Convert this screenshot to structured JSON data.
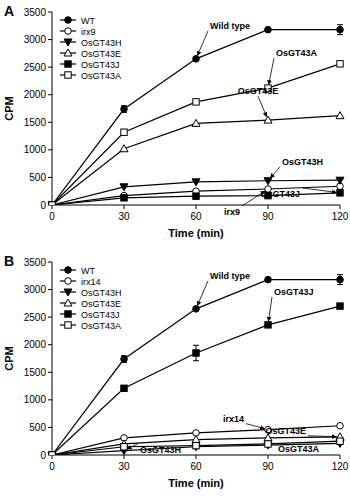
{
  "chart_data": [
    {
      "type": "line",
      "title": "A",
      "x_label": "Time (min)",
      "y_label": "CPM",
      "x": [
        0,
        30,
        60,
        90,
        120
      ],
      "xlim": [
        0,
        120
      ],
      "xticks": [
        0,
        30,
        60,
        90,
        120
      ],
      "ylim": [
        0,
        3500
      ],
      "yticks": [
        0,
        500,
        1000,
        1500,
        2000,
        2500,
        3000,
        3500
      ],
      "legend": "upper left",
      "series": [
        {
          "name": "WT",
          "color": "#000000",
          "marker": "circle",
          "values": [
            0,
            1740,
            2650,
            3180,
            3180
          ],
          "errors": [
            null,
            60,
            null,
            null,
            90
          ]
        },
        {
          "name": "irx9",
          "color": "#000000",
          "marker": "circle-open",
          "values": [
            0,
            170,
            250,
            290,
            340
          ]
        },
        {
          "name": "OsGT43H",
          "color": "#000000",
          "marker": "triangle-down",
          "values": [
            0,
            330,
            420,
            440,
            450
          ]
        },
        {
          "name": "OsGT43E",
          "color": "#000000",
          "marker": "triangle-open",
          "values": [
            0,
            1020,
            1480,
            1540,
            1620
          ]
        },
        {
          "name": "OsGT43J",
          "color": "#000000",
          "marker": "square",
          "values": [
            0,
            130,
            160,
            170,
            220
          ]
        },
        {
          "name": "OsGT43A",
          "color": "#000000",
          "marker": "square-open",
          "values": [
            0,
            1320,
            1870,
            2120,
            2560
          ]
        }
      ],
      "annotations": [
        "Wild type",
        "OsGT43A",
        "OsGT43E",
        "OsGT43H",
        "irx9",
        "OsGT43J"
      ]
    },
    {
      "type": "line",
      "title": "B",
      "x_label": "Time (min)",
      "y_label": "CPM",
      "x": [
        0,
        30,
        60,
        90,
        120
      ],
      "xlim": [
        0,
        120
      ],
      "xticks": [
        0,
        30,
        60,
        90,
        120
      ],
      "ylim": [
        0,
        3500
      ],
      "yticks": [
        0,
        500,
        1000,
        1500,
        2000,
        2500,
        3000,
        3500
      ],
      "legend": "upper left",
      "series": [
        {
          "name": "WT",
          "color": "#000000",
          "marker": "circle",
          "values": [
            0,
            1740,
            2650,
            3180,
            3180
          ],
          "errors": [
            null,
            60,
            null,
            null,
            90
          ]
        },
        {
          "name": "irx14",
          "color": "#000000",
          "marker": "circle-open",
          "values": [
            0,
            310,
            400,
            460,
            530
          ]
        },
        {
          "name": "OsGT43H",
          "color": "#000000",
          "marker": "triangle-down",
          "values": [
            0,
            80,
            150,
            180,
            210
          ]
        },
        {
          "name": "OsGT43E",
          "color": "#000000",
          "marker": "triangle-open",
          "values": [
            0,
            200,
            280,
            310,
            330
          ]
        },
        {
          "name": "OsGT43J",
          "color": "#000000",
          "marker": "square",
          "values": [
            0,
            1210,
            1850,
            2360,
            2700
          ],
          "errors": [
            null,
            null,
            140,
            null,
            null
          ]
        },
        {
          "name": "OsGT43A",
          "color": "#000000",
          "marker": "square-open",
          "values": [
            0,
            150,
            170,
            200,
            250
          ]
        }
      ],
      "annotations": [
        "Wild type",
        "OsGT43J",
        "irx14",
        "OsGT43E",
        "OsGT43H",
        "OsGT43A"
      ]
    }
  ]
}
